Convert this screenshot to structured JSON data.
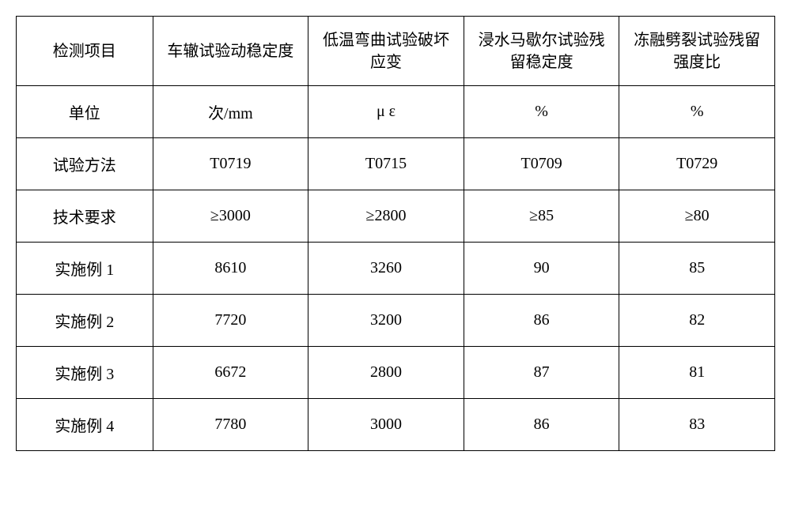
{
  "table": {
    "type": "table",
    "background_color": "#ffffff",
    "border_color": "#000000",
    "text_color": "#000000",
    "font_family": "SimSun",
    "header_fontsize": 20,
    "cell_fontsize": 20,
    "columns": [
      "检测项目",
      "车辙试验动稳定度",
      "低温弯曲试验破坏应变",
      "浸水马歇尔试验残留稳定度",
      "冻融劈裂试验残留强度比"
    ],
    "rows": [
      [
        "单位",
        "次/mm",
        "μ ε",
        "%",
        "%"
      ],
      [
        "试验方法",
        "T0719",
        "T0715",
        "T0709",
        "T0729"
      ],
      [
        "技术要求",
        "≥3000",
        "≥2800",
        "≥85",
        "≥80"
      ],
      [
        "实施例 1",
        "8610",
        "3260",
        "90",
        "85"
      ],
      [
        "实施例 2",
        "7720",
        "3200",
        "86",
        "82"
      ],
      [
        "实施例 3",
        "6672",
        "2800",
        "87",
        "81"
      ],
      [
        "实施例 4",
        "7780",
        "3000",
        "86",
        "83"
      ]
    ],
    "column_widths": [
      "18%",
      "20.5%",
      "20.5%",
      "20.5%",
      "20.5%"
    ],
    "header_row_height": 88,
    "data_row_height": 66,
    "border_width": 1.5
  }
}
